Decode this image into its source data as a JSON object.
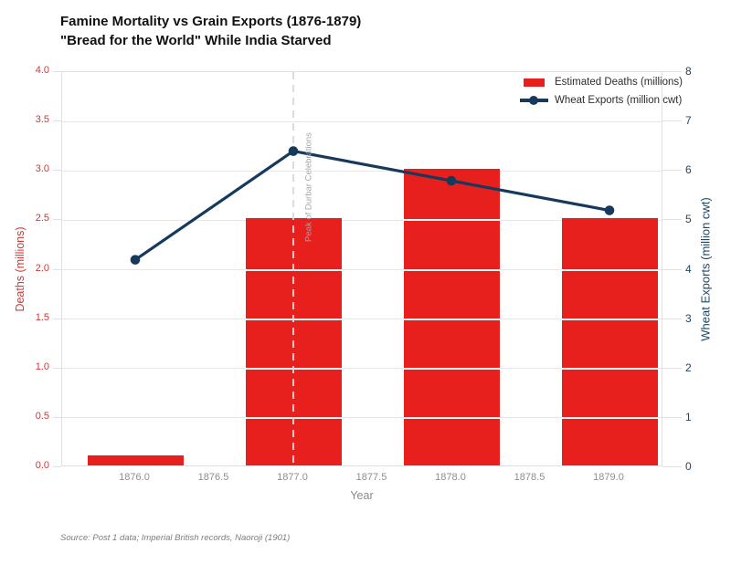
{
  "title": {
    "line1": "Famine Mortality vs Grain Exports (1876-1879)",
    "line2": "\"Bread for the World\" While India Starved"
  },
  "source_note": "Source: Post 1 data; Imperial British records, Naoroji (1901)",
  "chart_data": {
    "type": "bar+line",
    "title": "Famine Mortality vs Grain Exports (1876-1879)",
    "subtitle": "\"Bread for the World\" While India Starved",
    "x": [
      1876,
      1877,
      1878,
      1879
    ],
    "series": [
      {
        "name": "Estimated Deaths (millions)",
        "type": "bar",
        "axis": "left",
        "color": "#e7201e",
        "values": [
          0.1,
          2.5,
          3.0,
          2.5
        ]
      },
      {
        "name": "Wheat Exports (million cwt)",
        "type": "line",
        "axis": "right",
        "color": "#17395c",
        "values": [
          4.2,
          6.4,
          5.8,
          5.2
        ]
      }
    ],
    "xlabel": "Year",
    "x_tick_labels": [
      "1876.0",
      "1876.5",
      "1877.0",
      "1877.5",
      "1878.0",
      "1878.5",
      "1879.0"
    ],
    "x_tick_values": [
      1876.0,
      1876.5,
      1877.0,
      1877.5,
      1878.0,
      1878.5,
      1879.0
    ],
    "left_axis": {
      "label": "Deaths (millions)",
      "range": [
        0.0,
        4.0
      ],
      "tick_step": 0.5,
      "tick_labels": [
        "0.0",
        "0.5",
        "1.0",
        "1.5",
        "2.0",
        "2.5",
        "3.0",
        "3.5",
        "4.0"
      ],
      "color": "#ce3836"
    },
    "right_axis": {
      "label": "Wheat Exports (million cwt)",
      "range": [
        0,
        8
      ],
      "tick_step": 1,
      "tick_labels": [
        "0",
        "1",
        "2",
        "3",
        "4",
        "5",
        "6",
        "7",
        "8"
      ],
      "color": "#1c4766"
    },
    "annotation": {
      "text": "Peak of Durbar Celebrations",
      "x": 1877
    },
    "grid": true,
    "legend_position": "top-right",
    "legend": [
      "Estimated Deaths (millions)",
      "Wheat Exports (million cwt)"
    ]
  }
}
